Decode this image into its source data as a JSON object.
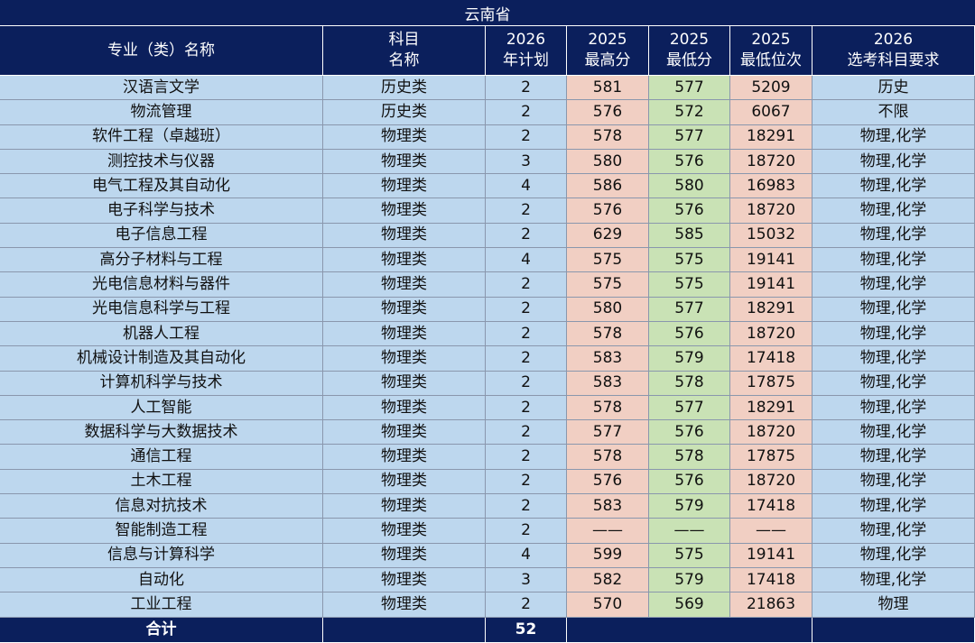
{
  "title": "云南省",
  "header": [
    [
      "专业（类）名称"
    ],
    [
      "科目",
      "名称"
    ],
    [
      "2026",
      "年计划"
    ],
    [
      "2025",
      "最高分"
    ],
    [
      "2025",
      "最低分"
    ],
    [
      "2025",
      "最低位次"
    ],
    [
      "2026",
      "选考科目要求"
    ]
  ],
  "rows": [
    [
      "汉语言文学",
      "历史类",
      2,
      581,
      577,
      5209,
      "历史"
    ],
    [
      "物流管理",
      "历史类",
      2,
      576,
      572,
      6067,
      "不限"
    ],
    [
      "软件工程（卓越班）",
      "物理类",
      2,
      578,
      577,
      18291,
      "物理,化学"
    ],
    [
      "测控技术与仪器",
      "物理类",
      3,
      580,
      576,
      18720,
      "物理,化学"
    ],
    [
      "电气工程及其自动化",
      "物理类",
      4,
      586,
      580,
      16983,
      "物理,化学"
    ],
    [
      "电子科学与技术",
      "物理类",
      2,
      576,
      576,
      18720,
      "物理,化学"
    ],
    [
      "电子信息工程",
      "物理类",
      2,
      629,
      585,
      15032,
      "物理,化学"
    ],
    [
      "高分子材料与工程",
      "物理类",
      4,
      575,
      575,
      19141,
      "物理,化学"
    ],
    [
      "光电信息材料与器件",
      "物理类",
      2,
      575,
      575,
      19141,
      "物理,化学"
    ],
    [
      "光电信息科学与工程",
      "物理类",
      2,
      580,
      577,
      18291,
      "物理,化学"
    ],
    [
      "机器人工程",
      "物理类",
      2,
      578,
      576,
      18720,
      "物理,化学"
    ],
    [
      "机械设计制造及其自动化",
      "物理类",
      2,
      583,
      579,
      17418,
      "物理,化学"
    ],
    [
      "计算机科学与技术",
      "物理类",
      2,
      583,
      578,
      17875,
      "物理,化学"
    ],
    [
      "人工智能",
      "物理类",
      2,
      578,
      577,
      18291,
      "物理,化学"
    ],
    [
      "数据科学与大数据技术",
      "物理类",
      2,
      577,
      576,
      18720,
      "物理,化学"
    ],
    [
      "通信工程",
      "物理类",
      2,
      578,
      578,
      17875,
      "物理,化学"
    ],
    [
      "土木工程",
      "物理类",
      2,
      576,
      576,
      18720,
      "物理,化学"
    ],
    [
      "信息对抗技术",
      "物理类",
      2,
      583,
      579,
      17418,
      "物理,化学"
    ],
    [
      "智能制造工程",
      "物理类",
      2,
      "——",
      "——",
      "——",
      "物理,化学"
    ],
    [
      "信息与计算科学",
      "物理类",
      4,
      599,
      575,
      19141,
      "物理,化学"
    ],
    [
      "自动化",
      "物理类",
      3,
      582,
      579,
      17418,
      "物理,化学"
    ],
    [
      "工业工程",
      "物理类",
      2,
      570,
      569,
      21863,
      "物理"
    ]
  ],
  "footer": [
    "合计",
    52
  ]
}
